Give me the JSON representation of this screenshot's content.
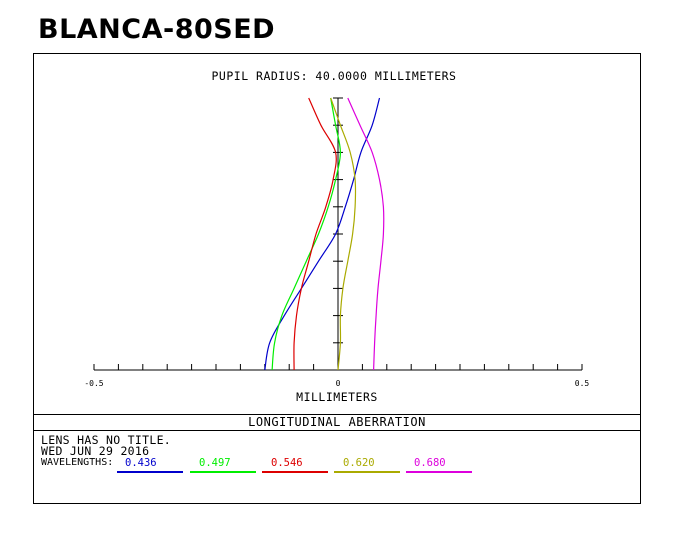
{
  "title": "BLANCA-80SED",
  "chart_data": {
    "type": "line",
    "title": "PUPIL RADIUS: 40.0000 MILLIMETERS",
    "xlabel": "MILLIMETERS",
    "ylabel": "",
    "xlim": [
      -0.5,
      0.5
    ],
    "ylim": [
      0,
      1
    ],
    "x_ticks": [
      {
        "value": -0.5,
        "label": "-0.5"
      },
      {
        "value": 0,
        "label": "0"
      },
      {
        "value": 0.5,
        "label": "0.5"
      }
    ],
    "caption": "LONGITUDINAL ABERRATION",
    "y_key": "normalized pupil height",
    "series": [
      {
        "name": "0.436",
        "color": "#0000cc",
        "points": [
          [
            -0.15,
            0.0
          ],
          [
            -0.14,
            0.1
          ],
          [
            -0.11,
            0.2
          ],
          [
            -0.075,
            0.3
          ],
          [
            -0.04,
            0.4
          ],
          [
            -0.005,
            0.5
          ],
          [
            0.015,
            0.6
          ],
          [
            0.032,
            0.7
          ],
          [
            0.047,
            0.8
          ],
          [
            0.07,
            0.9
          ],
          [
            0.085,
            1.0
          ]
        ]
      },
      {
        "name": "0.497",
        "color": "#00ee00",
        "points": [
          [
            -0.135,
            0.0
          ],
          [
            -0.13,
            0.1
          ],
          [
            -0.115,
            0.2
          ],
          [
            -0.09,
            0.3
          ],
          [
            -0.065,
            0.4
          ],
          [
            -0.04,
            0.5
          ],
          [
            -0.02,
            0.6
          ],
          [
            -0.005,
            0.7
          ],
          [
            0.005,
            0.8
          ],
          [
            -0.005,
            0.9
          ],
          [
            -0.015,
            1.0
          ]
        ]
      },
      {
        "name": "0.546",
        "color": "#dd0000",
        "points": [
          [
            -0.09,
            0.0
          ],
          [
            -0.09,
            0.1
          ],
          [
            -0.085,
            0.2
          ],
          [
            -0.075,
            0.3
          ],
          [
            -0.06,
            0.4
          ],
          [
            -0.045,
            0.5
          ],
          [
            -0.025,
            0.6
          ],
          [
            -0.01,
            0.7
          ],
          [
            -0.005,
            0.8
          ],
          [
            -0.035,
            0.9
          ],
          [
            -0.06,
            1.0
          ]
        ]
      },
      {
        "name": "0.620",
        "color": "#aaaa00",
        "points": [
          [
            0.0,
            0.0
          ],
          [
            0.005,
            0.1
          ],
          [
            0.005,
            0.2
          ],
          [
            0.01,
            0.3
          ],
          [
            0.02,
            0.4
          ],
          [
            0.03,
            0.5
          ],
          [
            0.035,
            0.6
          ],
          [
            0.035,
            0.7
          ],
          [
            0.025,
            0.8
          ],
          [
            0.005,
            0.9
          ],
          [
            -0.015,
            1.0
          ]
        ]
      },
      {
        "name": "0.680",
        "color": "#dd00dd",
        "points": [
          [
            0.073,
            0.0
          ],
          [
            0.075,
            0.1
          ],
          [
            0.078,
            0.2
          ],
          [
            0.082,
            0.3
          ],
          [
            0.088,
            0.4
          ],
          [
            0.093,
            0.5
          ],
          [
            0.093,
            0.6
          ],
          [
            0.085,
            0.7
          ],
          [
            0.07,
            0.8
          ],
          [
            0.045,
            0.9
          ],
          [
            0.02,
            1.0
          ]
        ]
      }
    ]
  },
  "info": {
    "line1": "LENS HAS NO TITLE.",
    "line2": "WED JUN 29 2016",
    "wavelengths_label": "WAVELENGTHS:"
  }
}
